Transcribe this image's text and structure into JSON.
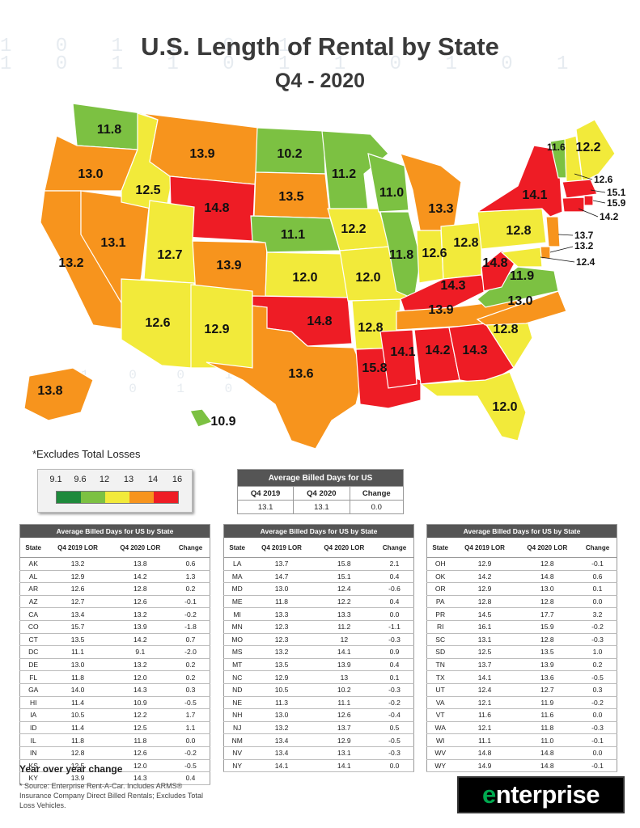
{
  "title": "U.S. Length of Rental by State",
  "subtitle": "Q4 - 2020",
  "note": "*Excludes Total Losses",
  "legend": {
    "ticks": [
      "9.1",
      "9.6",
      "12",
      "13",
      "14",
      "16"
    ],
    "colors": [
      "#1e8a3c",
      "#7cc142",
      "#f2ea3a",
      "#f7941d",
      "#ee1c25"
    ]
  },
  "color_scale": {
    "green": "#7cc142",
    "yellow": "#f2ea3a",
    "orange": "#f7941d",
    "red": "#ee1c25"
  },
  "map_values": {
    "WA": "11.8",
    "OR": "13.0",
    "CA": "13.2",
    "NV": "13.1",
    "ID": "12.5",
    "MT": "13.9",
    "WY": "14.8",
    "UT": "12.7",
    "CO": "13.9",
    "AZ": "12.6",
    "NM": "12.9",
    "ND": "10.2",
    "SD": "13.5",
    "NE": "11.1",
    "KS": "12.0",
    "OK": "14.8",
    "TX": "13.6",
    "MN": "11.2",
    "IA": "12.2",
    "MO": "12.0",
    "AR": "12.8",
    "LA": "15.8",
    "WI": "11.0",
    "IL": "11.8",
    "MI": "13.3",
    "IN": "12.6",
    "OH": "12.8",
    "KY": "14.3",
    "TN": "13.9",
    "MS": "14.1",
    "AL": "14.2",
    "GA": "14.3",
    "FL": "12.0",
    "SC": "12.8",
    "NC": "13.0",
    "VA": "11.9",
    "WV": "14.8",
    "PA": "12.8",
    "NY": "14.1",
    "VT": "11.6",
    "NH": "12.6",
    "ME": "12.2",
    "MA": "15.1",
    "RI": "15.9",
    "CT": "14.2",
    "NJ": "13.7",
    "DE": "13.2",
    "MD": "12.4",
    "AK": "13.8",
    "HI": "10.9"
  },
  "summary": {
    "title": "Average Billed Days for US",
    "headers": [
      "Q4 2019",
      "Q4 2020",
      "Change"
    ],
    "row": [
      "13.1",
      "13.1",
      "0.0"
    ]
  },
  "state_tables": {
    "title": "Average Billed Days for US by State",
    "headers": [
      "State",
      "Q4 2019 LOR",
      "Q4 2020 LOR",
      "Change"
    ],
    "col1": [
      [
        "AK",
        "13.2",
        "13.8",
        "0.6"
      ],
      [
        "AL",
        "12.9",
        "14.2",
        "1.3"
      ],
      [
        "AR",
        "12.6",
        "12.8",
        "0.2"
      ],
      [
        "AZ",
        "12.7",
        "12.6",
        "-0.1"
      ],
      [
        "CA",
        "13.4",
        "13.2",
        "-0.2"
      ],
      [
        "CO",
        "15.7",
        "13.9",
        "-1.8"
      ],
      [
        "CT",
        "13.5",
        "14.2",
        "0.7"
      ],
      [
        "DC",
        "11.1",
        "9.1",
        "-2.0"
      ],
      [
        "DE",
        "13.0",
        "13.2",
        "0.2"
      ],
      [
        "FL",
        "11.8",
        "12.0",
        "0.2"
      ],
      [
        "GA",
        "14.0",
        "14.3",
        "0.3"
      ],
      [
        "HI",
        "11.4",
        "10.9",
        "-0.5"
      ],
      [
        "IA",
        "10.5",
        "12.2",
        "1.7"
      ],
      [
        "ID",
        "11.4",
        "12.5",
        "1.1"
      ],
      [
        "IL",
        "11.8",
        "11.8",
        "0.0"
      ],
      [
        "IN",
        "12.8",
        "12.6",
        "-0.2"
      ],
      [
        "KS",
        "12.5",
        "12.0",
        "-0.5"
      ],
      [
        "KY",
        "13.9",
        "14.3",
        "0.4"
      ]
    ],
    "col2": [
      [
        "LA",
        "13.7",
        "15.8",
        "2.1"
      ],
      [
        "MA",
        "14.7",
        "15.1",
        "0.4"
      ],
      [
        "MD",
        "13.0",
        "12.4",
        "-0.6"
      ],
      [
        "ME",
        "11.8",
        "12.2",
        "0.4"
      ],
      [
        "MI",
        "13.3",
        "13.3",
        "0.0"
      ],
      [
        "MN",
        "12.3",
        "11.2",
        "-1.1"
      ],
      [
        "MO",
        "12.3",
        "12",
        "-0.3"
      ],
      [
        "MS",
        "13.2",
        "14.1",
        "0.9"
      ],
      [
        "MT",
        "13.5",
        "13.9",
        "0.4"
      ],
      [
        "NC",
        "12.9",
        "13",
        "0.1"
      ],
      [
        "ND",
        "10.5",
        "10.2",
        "-0.3"
      ],
      [
        "NE",
        "11.3",
        "11.1",
        "-0.2"
      ],
      [
        "NH",
        "13.0",
        "12.6",
        "-0.4"
      ],
      [
        "NJ",
        "13.2",
        "13.7",
        "0.5"
      ],
      [
        "NM",
        "13.4",
        "12.9",
        "-0.5"
      ],
      [
        "NV",
        "13.4",
        "13.1",
        "-0.3"
      ],
      [
        "NY",
        "14.1",
        "14.1",
        "0.0"
      ]
    ],
    "col3": [
      [
        "OH",
        "12.9",
        "12.8",
        "-0.1"
      ],
      [
        "OK",
        "14.2",
        "14.8",
        "0.6"
      ],
      [
        "OR",
        "12.9",
        "13.0",
        "0.1"
      ],
      [
        "PA",
        "12.8",
        "12.8",
        "0.0"
      ],
      [
        "PR",
        "14.5",
        "17.7",
        "3.2"
      ],
      [
        "RI",
        "16.1",
        "15.9",
        "-0.2"
      ],
      [
        "SC",
        "13.1",
        "12.8",
        "-0.3"
      ],
      [
        "SD",
        "12.5",
        "13.5",
        "1.0"
      ],
      [
        "TN",
        "13.7",
        "13.9",
        "0.2"
      ],
      [
        "TX",
        "14.1",
        "13.6",
        "-0.5"
      ],
      [
        "UT",
        "12.4",
        "12.7",
        "0.3"
      ],
      [
        "VA",
        "12.1",
        "11.9",
        "-0.2"
      ],
      [
        "VT",
        "11.6",
        "11.6",
        "0.0"
      ],
      [
        "WA",
        "12.1",
        "11.8",
        "-0.3"
      ],
      [
        "WI",
        "11.1",
        "11.0",
        "-0.1"
      ],
      [
        "WV",
        "14.8",
        "14.8",
        "0.0"
      ],
      [
        "WY",
        "14.9",
        "14.8",
        "-0.1"
      ]
    ]
  },
  "footer": {
    "yoy_label": "Year over year change",
    "source": "* Source: Enterprise Rent-A-Car. Includes ARMS® Insurance Company Direct Billed Rentals; Excludes Total Loss Vehicles.",
    "logo_e": "e",
    "logo_rest": "nterprise"
  },
  "background_digits": [
    "1 0 1 1 0 1",
    "1 0 1 1 0 1 1 0 1 0 1",
    "1 0 0 1 0 1",
    "1 0 1 0 1 0 1"
  ]
}
